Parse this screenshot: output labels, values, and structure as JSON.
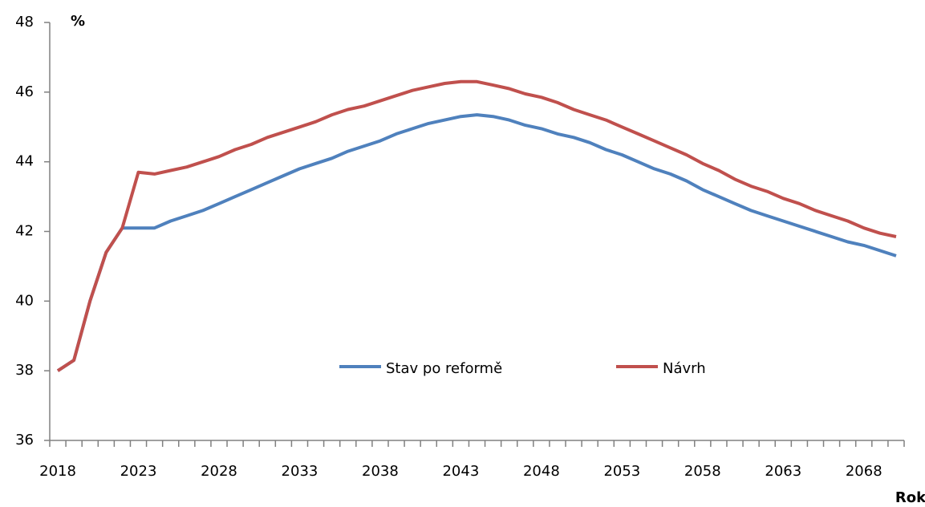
{
  "chart_data": {
    "type": "line",
    "y_label": "%",
    "x_label": "Rok",
    "categories": [
      "2018",
      null,
      null,
      null,
      null,
      "2023",
      null,
      null,
      null,
      null,
      "2028",
      null,
      null,
      null,
      null,
      "2033",
      null,
      null,
      null,
      null,
      "2038",
      null,
      null,
      null,
      null,
      "2043",
      null,
      null,
      null,
      null,
      "2048",
      null,
      null,
      null,
      null,
      "2053",
      null,
      null,
      null,
      null,
      "2058",
      null,
      null,
      null,
      null,
      "2063",
      null,
      null,
      null,
      null,
      "2068",
      null,
      null
    ],
    "series": [
      {
        "name": "Stav po reformě",
        "color": "#4f81bd",
        "values": [
          38.0,
          38.3,
          40.0,
          41.4,
          42.1,
          42.1,
          42.1,
          42.3,
          42.45,
          42.6,
          42.8,
          43.0,
          43.2,
          43.4,
          43.6,
          43.8,
          43.95,
          44.1,
          44.3,
          44.45,
          44.6,
          44.8,
          44.95,
          45.1,
          45.2,
          45.3,
          45.35,
          45.3,
          45.2,
          45.05,
          44.95,
          44.8,
          44.7,
          44.55,
          44.35,
          44.2,
          44.0,
          43.8,
          43.65,
          43.45,
          43.2,
          43.0,
          42.8,
          42.6,
          42.45,
          42.3,
          42.15,
          42.0,
          41.85,
          41.7,
          41.6,
          41.45,
          41.3
        ]
      },
      {
        "name": "Návrh",
        "color": "#c0504d",
        "values": [
          38.0,
          38.3,
          40.0,
          41.4,
          42.1,
          43.7,
          43.65,
          43.75,
          43.85,
          44.0,
          44.15,
          44.35,
          44.5,
          44.7,
          44.85,
          45.0,
          45.15,
          45.35,
          45.5,
          45.6,
          45.75,
          45.9,
          46.05,
          46.15,
          46.25,
          46.3,
          46.3,
          46.2,
          46.1,
          45.95,
          45.85,
          45.7,
          45.5,
          45.35,
          45.2,
          45.0,
          44.8,
          44.6,
          44.4,
          44.2,
          43.95,
          43.75,
          43.5,
          43.3,
          43.15,
          42.95,
          42.8,
          42.6,
          42.45,
          42.3,
          42.1,
          41.95,
          41.85
        ]
      }
    ],
    "ylim": [
      36,
      48
    ],
    "yticks": [
      36,
      38,
      40,
      42,
      44,
      46,
      48
    ]
  }
}
